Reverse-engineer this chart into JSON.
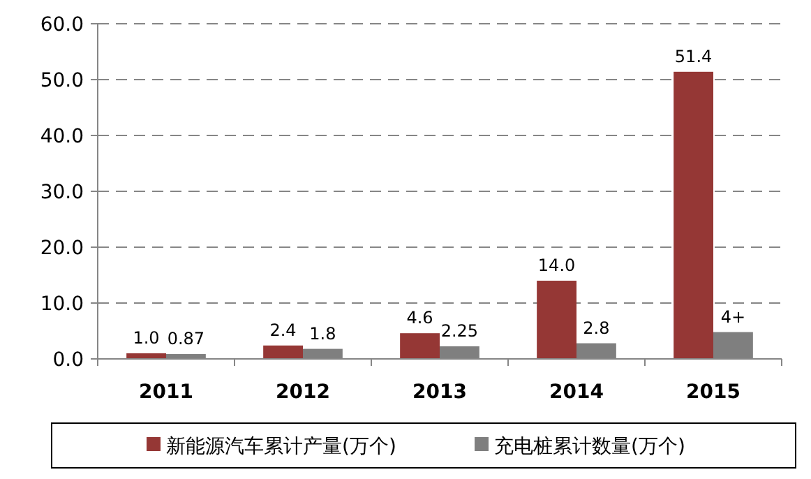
{
  "chart_data": {
    "type": "bar",
    "categories": [
      "2011",
      "2012",
      "2013",
      "2014",
      "2015"
    ],
    "series": [
      {
        "name": "新能源汽车累计产量(万个)",
        "color": "#953735",
        "values": [
          1.0,
          2.4,
          4.6,
          14.0,
          51.4
        ],
        "value_labels": [
          "1.0",
          "2.4",
          "4.6",
          "14.0",
          "51.4"
        ]
      },
      {
        "name": "充电桩累计数量(万个)",
        "color": "#7f7f7f",
        "values": [
          0.87,
          1.8,
          2.25,
          2.8,
          4.8
        ],
        "value_labels": [
          "0.87",
          "1.8",
          "2.25",
          "2.8",
          "4+"
        ]
      }
    ],
    "ylim": [
      0,
      60
    ],
    "yticks": [
      {
        "value": 0,
        "label": "0.0"
      },
      {
        "value": 10,
        "label": "10.0"
      },
      {
        "value": 20,
        "label": "20.0"
      },
      {
        "value": 30,
        "label": "30.0"
      },
      {
        "value": 40,
        "label": "40.0"
      },
      {
        "value": 50,
        "label": "50.0"
      },
      {
        "value": 60,
        "label": "60.0"
      }
    ],
    "grid": "y",
    "legend": "bottom"
  }
}
